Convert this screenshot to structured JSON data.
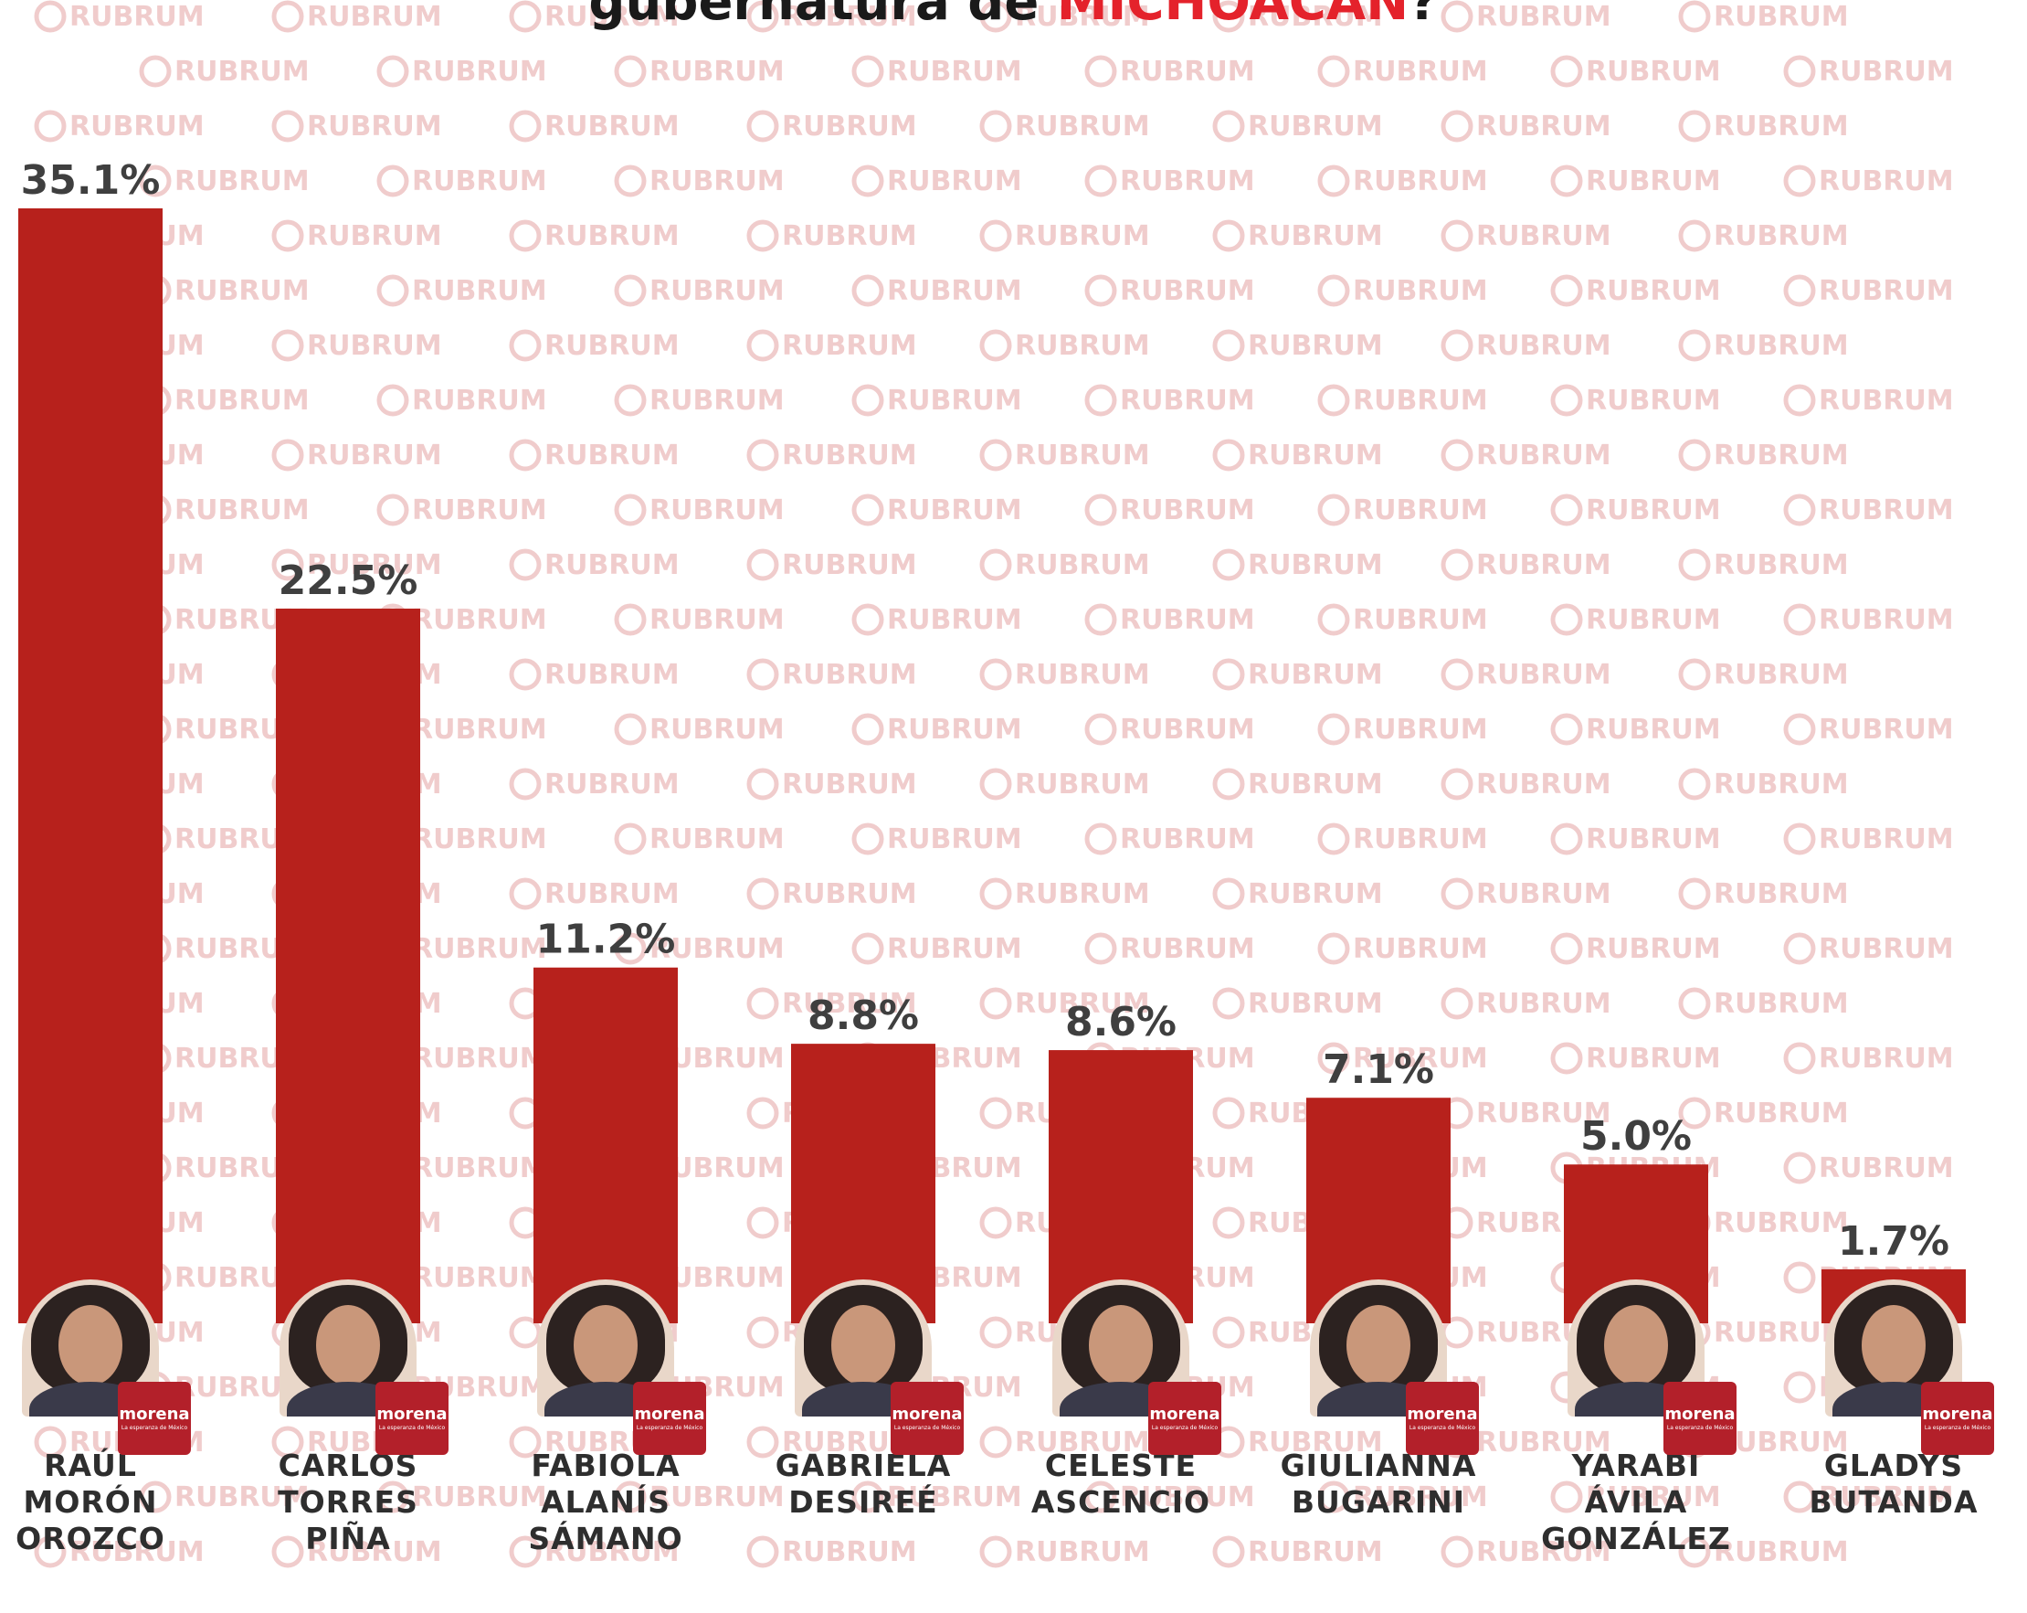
{
  "title": {
    "visible_text": "gubernatura de",
    "state": "MICHOACÁN",
    "suffix": "?"
  },
  "watermark_text": "RUBRUM",
  "party_badge": {
    "name": "morena",
    "subtitle": "La esperanza de México"
  },
  "colors": {
    "bar": "#b7211c",
    "accent": "#e4222b",
    "label": "#3f3f3f",
    "badge": "#b3202a"
  },
  "chart_data": {
    "type": "bar",
    "unit": "%",
    "ylim": [
      0,
      35.1
    ],
    "categories": [
      "RAÚL MORÓN OROZCO",
      "CARLOS TORRES PIÑA",
      "FABIOLA ALANÍS SÁMANO",
      "GABRIELA DESIREÉ",
      "CELESTE ASCENCIO",
      "GIULIANNA BUGARINI",
      "YARABÍ ÁVILA GONZÁLEZ",
      "GLADYS BUTANDA"
    ],
    "values": [
      35.1,
      22.5,
      11.2,
      8.8,
      8.6,
      7.1,
      5.0,
      1.7
    ],
    "value_labels": [
      "35.1%",
      "22.5%",
      "11.2%",
      "8.8%",
      "8.6%",
      "7.1%",
      "5.0%",
      "1.7%"
    ],
    "name_lines": [
      [
        "RAÚL",
        "MORÓN",
        "OROZCO"
      ],
      [
        "CARLOS",
        "TORRES",
        "PIÑA"
      ],
      [
        "FABIOLA",
        "ALANÍS",
        "SÁMANO"
      ],
      [
        "GABRIELA",
        "DESIREÉ"
      ],
      [
        "CELESTE",
        "ASCENCIO"
      ],
      [
        "GIULIANNA",
        "BUGARINI"
      ],
      [
        "YARABÍ",
        "ÁVILA",
        "GONZÁLEZ"
      ],
      [
        "GLADYS",
        "BUTANDA"
      ]
    ],
    "legend": "none",
    "grid": false
  }
}
